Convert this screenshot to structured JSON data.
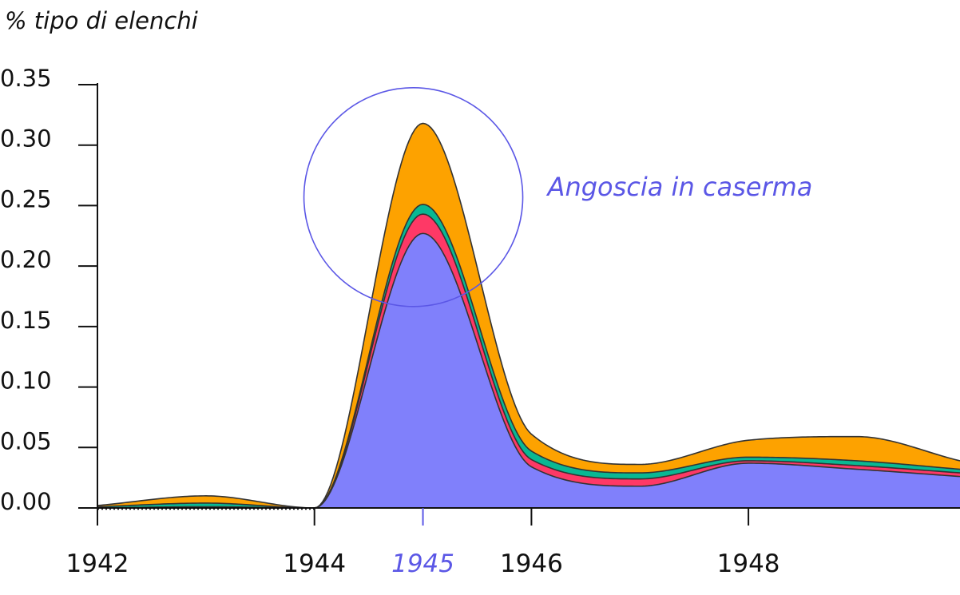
{
  "chart_data": {
    "type": "area",
    "stacked": true,
    "title": "",
    "ylabel": "% tipo di elenchi",
    "xlabel": "",
    "ylim": [
      0,
      0.35
    ],
    "yticks": [
      0.0,
      0.05,
      0.1,
      0.15,
      0.2,
      0.25,
      0.3,
      0.35
    ],
    "ytick_labels": [
      "0.00",
      "0.05",
      "0.10",
      "0.15",
      "0.20",
      "0.25",
      "0.30",
      "0.35"
    ],
    "xlim": [
      1942,
      1949.95
    ],
    "xticks": [
      1942,
      1944,
      1946,
      1948
    ],
    "xtick_labels": [
      "1942",
      "1944",
      "1946",
      "1948"
    ],
    "highlight": {
      "x": 1945,
      "label": "1945",
      "color": "#5b57e6"
    },
    "x": [
      1942,
      1943,
      1944,
      1945,
      1946,
      1947,
      1948,
      1949,
      1949.95
    ],
    "series": [
      {
        "color": "#8080fb",
        "values": [
          0.0,
          0.0,
          0.0,
          0.227,
          0.034,
          0.018,
          0.037,
          0.032,
          0.026
        ]
      },
      {
        "color": "#fe3966",
        "values": [
          0.0,
          0.001,
          0.0,
          0.016,
          0.006,
          0.006,
          0.002,
          0.003,
          0.003
        ]
      },
      {
        "color": "#09b893",
        "values": [
          0.001,
          0.003,
          0.0,
          0.008,
          0.007,
          0.005,
          0.003,
          0.004,
          0.003
        ]
      },
      {
        "color": "#fda200",
        "values": [
          0.001,
          0.006,
          0.0,
          0.067,
          0.014,
          0.007,
          0.014,
          0.02,
          0.007
        ]
      }
    ],
    "annotations": [
      {
        "text": "Angoscia in caserma",
        "x": 1945,
        "y": 0.257,
        "color": "#5b57e6"
      }
    ],
    "grid": false,
    "legend": "none"
  }
}
